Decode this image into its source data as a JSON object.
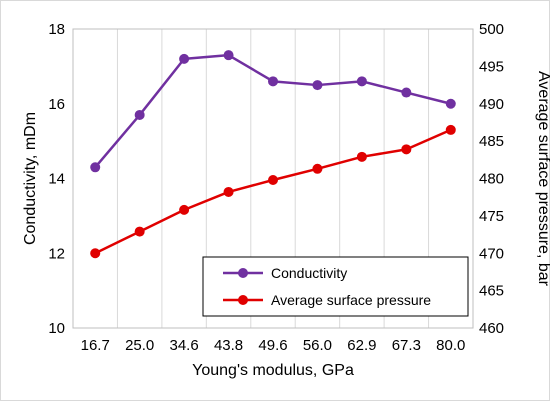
{
  "chart_data": {
    "type": "line",
    "categories": [
      "16.7",
      "25.0",
      "34.6",
      "43.8",
      "49.6",
      "56.0",
      "62.9",
      "67.3",
      "80.0"
    ],
    "xlabel": "Young's modulus, GPa",
    "ylabel_left": "Conductivity, mDm",
    "ylabel_right": "Average surface pressure, bar",
    "ylim_left": [
      10,
      18
    ],
    "ylim_right": [
      460,
      500
    ],
    "yticks_left": [
      "10",
      "12",
      "14",
      "16",
      "18"
    ],
    "yticks_right": [
      "460",
      "465",
      "470",
      "475",
      "480",
      "485",
      "490",
      "495",
      "500"
    ],
    "grid": "vertical",
    "legend_position": "bottom-right",
    "series": [
      {
        "name": "Conductivity",
        "axis": "left",
        "color": "#7030a0",
        "values": [
          14.3,
          15.7,
          17.2,
          17.3,
          16.6,
          16.5,
          16.6,
          16.3,
          16.0
        ]
      },
      {
        "name": "Average surface pressure",
        "axis": "right",
        "color": "#e00000",
        "values": [
          470.0,
          472.9,
          475.8,
          478.2,
          479.8,
          481.3,
          482.9,
          483.9,
          486.5
        ]
      }
    ]
  }
}
